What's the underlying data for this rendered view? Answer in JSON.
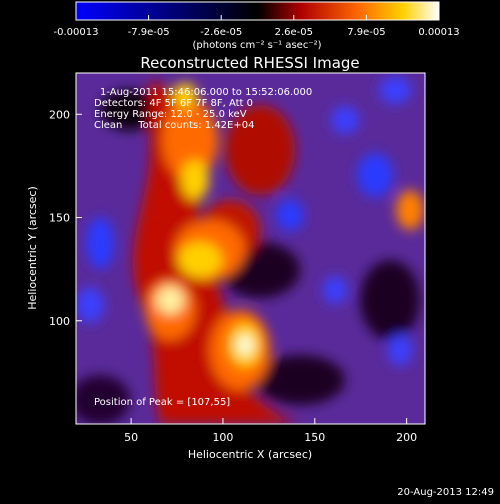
{
  "chart_data": {
    "type": "heatmap",
    "title": "Reconstructed RHESSI Image",
    "xlabel": "Heliocentric X (arcsec)",
    "ylabel": "Heliocentric Y (arcsec)",
    "xlim": [
      20,
      210
    ],
    "ylim": [
      50,
      220
    ],
    "x_ticks": [
      50,
      100,
      150,
      200
    ],
    "y_ticks": [
      100,
      150,
      200
    ],
    "colorbar": {
      "ticks": [
        "-0.00013",
        "-7.9e-05",
        "-2.6e-05",
        "2.6e-05",
        "7.9e-05",
        "0.00013"
      ],
      "vmin": -0.00013,
      "vmax": 0.00013,
      "unit_label": "(photons cm⁻² s⁻¹ asec⁻²)"
    },
    "annotations": [
      "1-Aug-2011 15:46:06.000 to 15:52:06.000",
      "Detectors: 4F 5F 6F 7F 8F, Att 0",
      "Energy Range: 12.0 - 25.0 keV",
      "Clean     Total counts: 1.42E+04"
    ],
    "peak_label": "Position of Peak = [107,55]",
    "grid": false
  },
  "footer": {
    "timestamp": "20-Aug-2013 12:49"
  }
}
